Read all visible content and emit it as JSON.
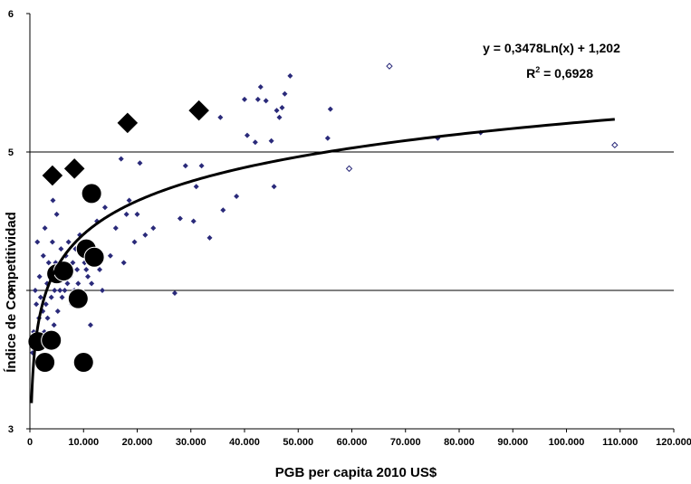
{
  "chart_data": {
    "type": "scatter",
    "title": "",
    "xlabel": "PGB per capita 2010 US$",
    "ylabel": "Índice de Competitividad",
    "xlim": [
      0,
      120000
    ],
    "ylim": [
      3,
      6
    ],
    "x_ticks": [
      "0",
      "10.000",
      "20.000",
      "30.000",
      "40.000",
      "50.000",
      "60.000",
      "70.000",
      "80.000",
      "90.000",
      "100.000",
      "110.000",
      "120.000"
    ],
    "y_ticks": [
      "3",
      "4",
      "5",
      "6"
    ],
    "gridlines_y": [
      4,
      5
    ],
    "trendline": {
      "equation": "y = 0,3478Ln(x) + 1,202",
      "r2_label": "R",
      "r2_sup": "2",
      "r2_value": " = 0,6928",
      "a": 0.3478,
      "b": 1.202,
      "x_range": [
        300,
        109000
      ]
    },
    "series": [
      {
        "marker": "small-diamond",
        "color": "#2a2a7a",
        "points": [
          [
            500,
            3.55
          ],
          [
            700,
            3.7
          ],
          [
            900,
            3.6
          ],
          [
            1000,
            4.0
          ],
          [
            1200,
            3.9
          ],
          [
            1400,
            4.35
          ],
          [
            1500,
            3.5
          ],
          [
            1700,
            3.8
          ],
          [
            1800,
            4.1
          ],
          [
            2000,
            3.95
          ],
          [
            2200,
            3.65
          ],
          [
            2400,
            3.85
          ],
          [
            2500,
            4.25
          ],
          [
            2700,
            3.7
          ],
          [
            2800,
            4.45
          ],
          [
            3000,
            3.9
          ],
          [
            3200,
            4.05
          ],
          [
            3300,
            3.8
          ],
          [
            3500,
            4.2
          ],
          [
            3600,
            3.6
          ],
          [
            3800,
            4.1
          ],
          [
            4000,
            3.95
          ],
          [
            4200,
            4.35
          ],
          [
            4300,
            4.65
          ],
          [
            4500,
            3.75
          ],
          [
            4600,
            4.0
          ],
          [
            4800,
            4.2
          ],
          [
            5000,
            4.55
          ],
          [
            5200,
            3.85
          ],
          [
            5400,
            4.1
          ],
          [
            5600,
            4.0
          ],
          [
            5800,
            4.3
          ],
          [
            6000,
            3.95
          ],
          [
            6200,
            4.15
          ],
          [
            6500,
            4.0
          ],
          [
            6700,
            4.25
          ],
          [
            7000,
            4.05
          ],
          [
            7200,
            4.35
          ],
          [
            7500,
            4.1
          ],
          [
            7800,
            3.9
          ],
          [
            8000,
            4.2
          ],
          [
            8300,
            4.0
          ],
          [
            8500,
            4.3
          ],
          [
            8800,
            4.15
          ],
          [
            9000,
            4.05
          ],
          [
            9300,
            4.4
          ],
          [
            9600,
            3.95
          ],
          [
            9800,
            4.25
          ],
          [
            10000,
            3.9
          ],
          [
            10200,
            4.2
          ],
          [
            10500,
            4.15
          ],
          [
            10800,
            4.1
          ],
          [
            11000,
            4.35
          ],
          [
            11300,
            3.75
          ],
          [
            11500,
            4.05
          ],
          [
            12000,
            4.3
          ],
          [
            12500,
            4.5
          ],
          [
            13000,
            4.15
          ],
          [
            13500,
            4.0
          ],
          [
            14000,
            4.6
          ],
          [
            15000,
            4.25
          ],
          [
            16000,
            4.45
          ],
          [
            17000,
            4.95
          ],
          [
            17500,
            4.2
          ],
          [
            18000,
            4.55
          ],
          [
            18500,
            4.65
          ],
          [
            19500,
            4.35
          ],
          [
            20000,
            4.55
          ],
          [
            20500,
            4.92
          ],
          [
            21500,
            4.4
          ],
          [
            23000,
            4.45
          ],
          [
            27000,
            3.98
          ],
          [
            28000,
            4.52
          ],
          [
            29000,
            4.9
          ],
          [
            30500,
            4.5
          ],
          [
            31000,
            4.75
          ],
          [
            32000,
            4.9
          ],
          [
            33500,
            4.38
          ],
          [
            35500,
            5.25
          ],
          [
            36000,
            4.58
          ],
          [
            38500,
            4.68
          ],
          [
            40000,
            5.38
          ],
          [
            40500,
            5.12
          ],
          [
            42000,
            5.07
          ],
          [
            42500,
            5.38
          ],
          [
            43000,
            5.47
          ],
          [
            44000,
            5.37
          ],
          [
            45000,
            5.08
          ],
          [
            45500,
            4.75
          ],
          [
            46000,
            5.3
          ],
          [
            46500,
            5.25
          ],
          [
            47000,
            5.32
          ],
          [
            47500,
            5.42
          ],
          [
            48500,
            5.55
          ],
          [
            55500,
            5.1
          ],
          [
            56000,
            5.31
          ],
          [
            76000,
            5.1
          ],
          [
            84000,
            5.14
          ]
        ]
      },
      {
        "marker": "open-diamond",
        "color": "#2a2a7a",
        "points": [
          [
            59500,
            4.88
          ],
          [
            67000,
            5.62
          ],
          [
            109000,
            5.05
          ]
        ]
      },
      {
        "marker": "large-circle",
        "color": "#000000",
        "points": [
          [
            1500,
            3.63
          ],
          [
            2800,
            3.48
          ],
          [
            4000,
            3.64
          ],
          [
            5000,
            4.12
          ],
          [
            6300,
            4.14
          ],
          [
            9000,
            3.94
          ],
          [
            10000,
            3.48
          ],
          [
            10500,
            4.3
          ],
          [
            11500,
            4.7
          ],
          [
            12000,
            4.24
          ]
        ]
      },
      {
        "marker": "large-diamond",
        "color": "#000000",
        "points": [
          [
            4200,
            4.83
          ],
          [
            8300,
            4.88
          ],
          [
            18200,
            5.21
          ],
          [
            31500,
            5.3
          ]
        ]
      }
    ]
  }
}
